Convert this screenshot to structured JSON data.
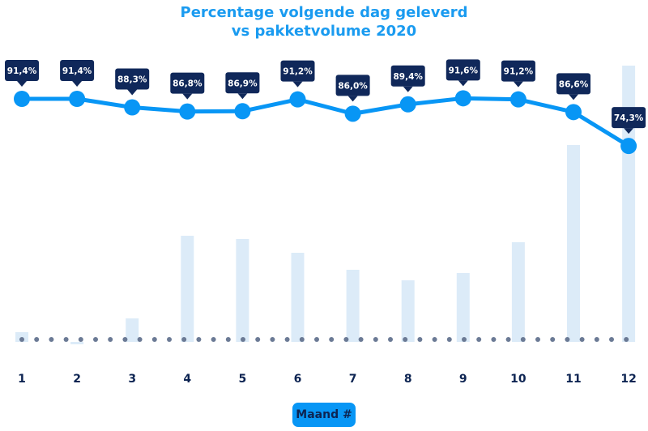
{
  "chart_data": {
    "type": "line+bar",
    "title_lines": [
      "Percentage volgende dag geleverd",
      "vs pakketvolume 2020"
    ],
    "xlabel": "Maand #",
    "categories": [
      "1",
      "2",
      "3",
      "4",
      "5",
      "6",
      "7",
      "8",
      "9",
      "10",
      "11",
      "12"
    ],
    "series": [
      {
        "type": "line",
        "values": [
          91.4,
          91.4,
          88.3,
          86.8,
          86.9,
          91.2,
          86.0,
          89.4,
          91.6,
          91.2,
          86.6,
          74.3
        ],
        "labels": [
          "91,4%",
          "91,4%",
          "88,3%",
          "86,8%",
          "86,9%",
          "91,2%",
          "86,0%",
          "89,4%",
          "91,6%",
          "91,2%",
          "86,6%",
          "74,3%"
        ]
      },
      {
        "type": "bar",
        "values": [
          12,
          -3,
          29,
          131,
          127,
          110,
          89,
          76,
          85,
          123,
          243,
          341
        ]
      }
    ],
    "grid": false,
    "colors": {
      "line": "#0896f5",
      "bar": "#dcebf8",
      "label_bg": "#10285a",
      "title": "#1a9bf0",
      "tick": "#0d2452",
      "baseline_dots": "#6b7a95"
    }
  }
}
